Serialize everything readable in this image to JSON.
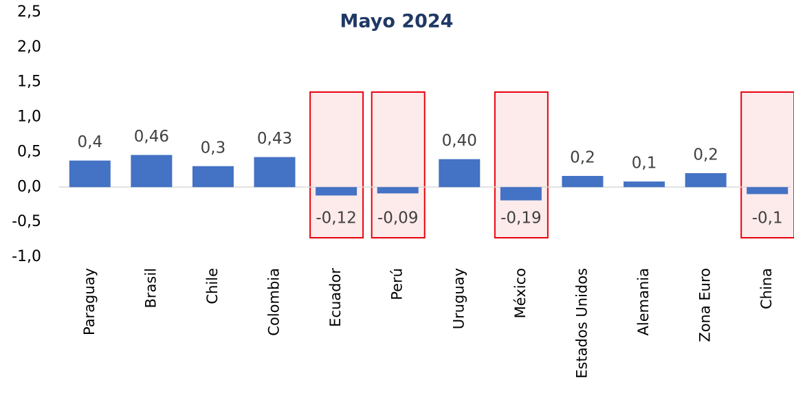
{
  "chart_data": {
    "type": "bar",
    "title": "Mayo 2024",
    "categories": [
      "Paraguay",
      "Brasil",
      "Chile",
      "Colombia",
      "Ecuador",
      "Perú",
      "Uruguay",
      "México",
      "Estados Unidos",
      "Alemania",
      "Zona Euro",
      "China"
    ],
    "values": [
      0.38,
      0.46,
      0.3,
      0.43,
      -0.12,
      -0.09,
      0.4,
      -0.19,
      0.16,
      0.08,
      0.2,
      -0.1
    ],
    "value_labels": [
      "0,4",
      "0,46",
      "0,3",
      "0,43",
      "-0,12",
      "-0,09",
      "0,40",
      "-0,19",
      "0,2",
      "0,1",
      "0,2",
      "-0,1"
    ],
    "color": "#4472c4",
    "highlighted": [
      4,
      5,
      7,
      11
    ],
    "highlight_color": "#e8000b",
    "ylim": [
      -1.0,
      2.5
    ],
    "yticks": [
      {
        "value": -1.0,
        "label": "-1,0"
      },
      {
        "value": -0.5,
        "label": "-0,5"
      },
      {
        "value": 0,
        "label": "0,0"
      },
      {
        "value": 0.5,
        "label": "0,5"
      },
      {
        "value": 1.0,
        "label": "1,0"
      },
      {
        "value": 1.5,
        "label": "1,5"
      },
      {
        "value": 2.0,
        "label": "2,0"
      },
      {
        "value": 2.5,
        "label": "2,5"
      }
    ],
    "grid": false
  }
}
